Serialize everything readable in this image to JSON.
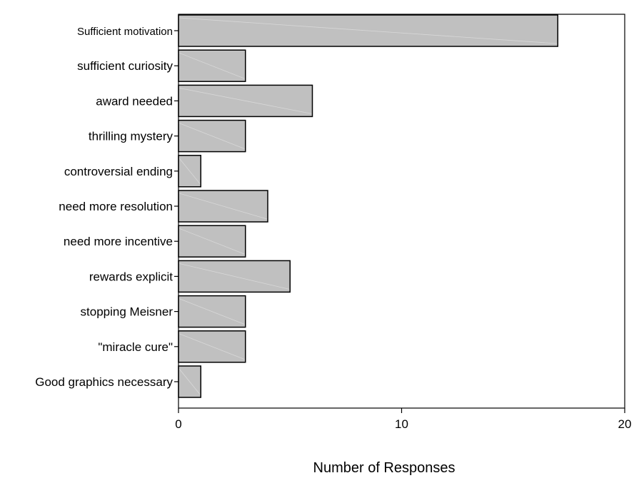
{
  "chart_data": {
    "type": "bar",
    "orientation": "horizontal",
    "categories": [
      "Sufficient motivation",
      "sufficient curiosity",
      "award needed",
      "thrilling mystery",
      "controversial ending",
      "need more resolution",
      "need more incentive",
      "rewards explicit",
      "stopping Meisner",
      "\"miracle cure\"",
      "Good graphics necessary"
    ],
    "values": [
      17,
      3,
      6,
      3,
      1,
      4,
      3,
      5,
      3,
      3,
      1
    ],
    "title": "",
    "xlabel": "Number of Responses",
    "ylabel": "",
    "xlim": [
      0,
      20
    ],
    "xticks": [
      0,
      10,
      20
    ],
    "grid": false,
    "legend": "none",
    "colors": {
      "bar_fill": "#c0c0c0",
      "bar_stroke": "#000000",
      "axis": "#000000"
    }
  }
}
